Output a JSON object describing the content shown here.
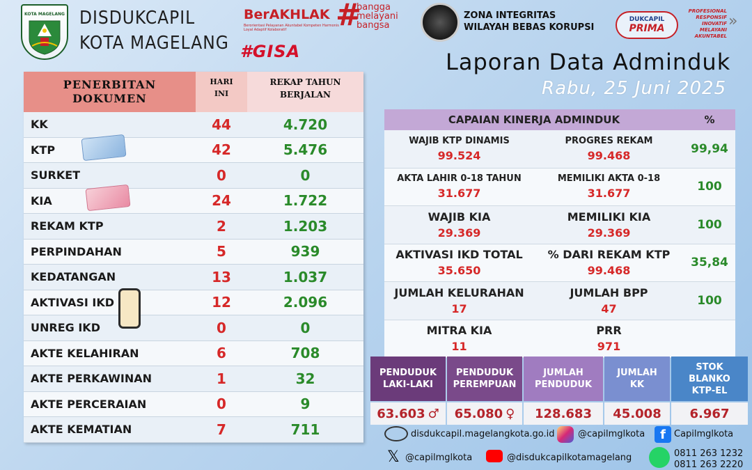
{
  "header": {
    "logo_text": "KOTA MAGELANG",
    "org_line1": "DISDUKCAPIL",
    "org_line2": "KOTA MAGELANG",
    "berakhlak": "BerAKHLAK",
    "berakhlak_sub": "Berorientasi Pelayanan Akuntabel Kompeten Harmonis Loyal Adaptif Kolaboratif",
    "bangga_hash": "#",
    "bangga_line1": "bangga",
    "bangga_line2": "melayani",
    "bangga_line3": "bangsa",
    "gisa": "#GISA",
    "zi_line1": "ZONA INTEGRITAS",
    "zi_line2": "WILAYAH BEBAS KORUPSI",
    "prima_line1": "DUKCAPIL",
    "prima_line2": "PRIMA",
    "prima_tag1": "PROFESIONAL",
    "prima_tag2": "RESPONSIF",
    "prima_tag3": "INOVATIF",
    "prima_tag4": "MELAYANI",
    "prima_tag5": "AKUNTABEL",
    "report_title": "Laporan Data Adminduk",
    "report_date": "Rabu, 25 Juni 2025"
  },
  "documents": {
    "col1_line1": "PENERBITAN",
    "col1_line2": "DOKUMEN",
    "col2_line1": "HARI",
    "col2_line2": "INI",
    "col3_line1": "REKAP TAHUN",
    "col3_line2": "BERJALAN",
    "rows": [
      {
        "name": "KK",
        "today": "44",
        "year": "4.720"
      },
      {
        "name": "KTP",
        "today": "42",
        "year": "5.476"
      },
      {
        "name": "SURKET",
        "today": "0",
        "year": "0"
      },
      {
        "name": "KIA",
        "today": "24",
        "year": "1.722"
      },
      {
        "name": "REKAM KTP",
        "today": "2",
        "year": "1.203"
      },
      {
        "name": "PERPINDAHAN",
        "today": "5",
        "year": "939"
      },
      {
        "name": "KEDATANGAN",
        "today": "13",
        "year": "1.037"
      },
      {
        "name": "AKTIVASI IKD",
        "today": "12",
        "year": "2.096"
      },
      {
        "name": "UNREG IKD",
        "today": "0",
        "year": "0"
      },
      {
        "name": "AKTE KELAHIRAN",
        "today": "6",
        "year": "708"
      },
      {
        "name": "AKTE PERKAWINAN",
        "today": "1",
        "year": "32"
      },
      {
        "name": "AKTE PERCERAIAN",
        "today": "0",
        "year": "9"
      },
      {
        "name": "AKTE KEMATIAN",
        "today": "7",
        "year": "711"
      }
    ]
  },
  "kinerja": {
    "title": "CAPAIAN KINERJA ADMINDUK",
    "pct_header": "%",
    "rows": [
      {
        "l1": "WAJIB KTP DINAMIS",
        "v1": "99.524",
        "l2": "PROGRES REKAM",
        "v2": "99.468",
        "pct": "99,94"
      },
      {
        "l1": "AKTA LAHIR 0-18 TAHUN",
        "v1": "31.677",
        "l2": "MEMILIKI AKTA 0-18",
        "v2": "31.677",
        "pct": "100"
      },
      {
        "l1": "WAJIB KIA",
        "v1": "29.369",
        "l2": "MEMILIKI KIA",
        "v2": "29.369",
        "pct": "100"
      },
      {
        "l1": "AKTIVASI IKD TOTAL",
        "v1": "35.650",
        "l2": "% DARI REKAM KTP",
        "v2": "99.468",
        "pct": "35,84"
      },
      {
        "l1": "JUMLAH KELURAHAN",
        "v1": "17",
        "l2": "JUMLAH BPP",
        "v2": "47",
        "pct": "100"
      },
      {
        "l1": "MITRA KIA",
        "v1": "11",
        "l2": "PRR",
        "v2": "971",
        "pct": ""
      }
    ]
  },
  "population": [
    {
      "line1": "PENDUDUK",
      "line2": "LAKI-LAKI",
      "value": "63.603",
      "color": "#6b3b7a"
    },
    {
      "line1": "PENDUDUK",
      "line2": "PEREMPUAN",
      "value": "65.080",
      "color": "#7a4a8a"
    },
    {
      "line1": "JUMLAH",
      "line2": "PENDUDUK",
      "value": "128.683",
      "color": "#a07cc0"
    },
    {
      "line1": "JUMLAH",
      "line2": "KK",
      "value": "45.008",
      "color": "#7a8fd0"
    },
    {
      "line1": "STOK",
      "line2": "BLANKO",
      "line3": "KTP-EL",
      "value": "6.967",
      "color": "#4a86c8"
    }
  ],
  "footer": {
    "website": "disdukcapil.magelangkota.go.id",
    "instagram": "@capilmglkota",
    "facebook": "Capilmglkota",
    "twitter": "@capilmglkota",
    "youtube": "@disdukcapilkotamagelang",
    "phone1": "0811 263 1232",
    "phone2": "0811 263 2220"
  },
  "colors": {
    "red_value": "#d62828",
    "green_value": "#2a8a2a",
    "kpi_header": "#c3a8d6",
    "doc_header": "#e78f88"
  }
}
